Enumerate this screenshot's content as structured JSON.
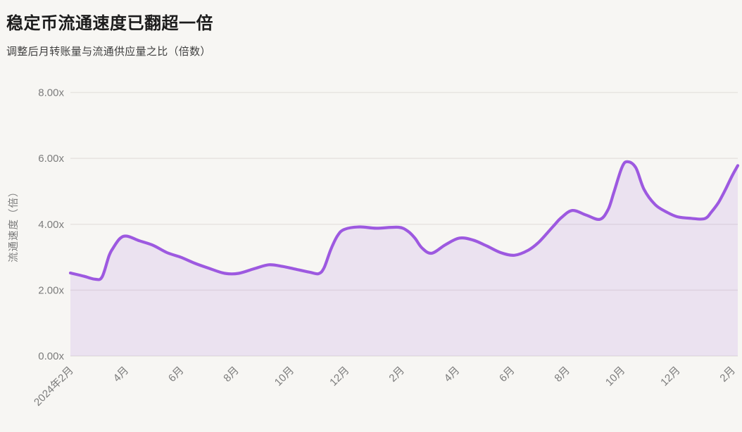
{
  "page": {
    "title": "稳定币流通速度已翻超一倍",
    "subtitle": "调整后月转账量与流通供应量之比（倍数）"
  },
  "colors": {
    "background": "#f7f6f3",
    "line": "#9d59e0",
    "area_fill": "rgba(157,89,224,0.13)",
    "grid": "#e7e4e0",
    "axis_text": "#7c7c7c",
    "title_text": "#1c1c1c",
    "subtitle_text": "#3f3f3f"
  },
  "chart_data": {
    "type": "area",
    "title": "稳定币流通速度已翻超一倍",
    "subtitle": "调整后月转账量与流通供应量之比（倍数）",
    "ylabel": "流通速度（倍）",
    "xlabel": "",
    "ylim": [
      0,
      8
    ],
    "x_domain_months": [
      0,
      24.2
    ],
    "grid": "horizontal-only",
    "legend": "none",
    "y_ticks": [
      {
        "v": 0,
        "label": "0.00x"
      },
      {
        "v": 2,
        "label": "2.00x"
      },
      {
        "v": 4,
        "label": "4.00x"
      },
      {
        "v": 6,
        "label": "6.00x"
      },
      {
        "v": 8,
        "label": "8.00x"
      }
    ],
    "x_ticks": [
      {
        "m": 0,
        "label": "2024年2月"
      },
      {
        "m": 2,
        "label": "4月"
      },
      {
        "m": 4,
        "label": "6月"
      },
      {
        "m": 6,
        "label": "8月"
      },
      {
        "m": 8,
        "label": "10月"
      },
      {
        "m": 10,
        "label": "12月"
      },
      {
        "m": 12,
        "label": "2月"
      },
      {
        "m": 14,
        "label": "4月"
      },
      {
        "m": 16,
        "label": "6月"
      },
      {
        "m": 18,
        "label": "8月"
      },
      {
        "m": 20,
        "label": "10月"
      },
      {
        "m": 22,
        "label": "12月"
      },
      {
        "m": 24,
        "label": "2月"
      }
    ],
    "series": [
      {
        "name": "稳定币流通速度",
        "unit": "x",
        "points": [
          [
            0.0,
            2.52
          ],
          [
            0.5,
            2.42
          ],
          [
            0.9,
            2.33
          ],
          [
            1.15,
            2.4
          ],
          [
            1.4,
            3.04
          ],
          [
            1.55,
            3.28
          ],
          [
            1.8,
            3.57
          ],
          [
            2.05,
            3.64
          ],
          [
            2.5,
            3.5
          ],
          [
            3.0,
            3.36
          ],
          [
            3.5,
            3.14
          ],
          [
            4.0,
            3.0
          ],
          [
            4.5,
            2.82
          ],
          [
            5.0,
            2.67
          ],
          [
            5.6,
            2.51
          ],
          [
            6.1,
            2.51
          ],
          [
            6.7,
            2.66
          ],
          [
            7.2,
            2.77
          ],
          [
            7.7,
            2.72
          ],
          [
            8.2,
            2.63
          ],
          [
            8.7,
            2.54
          ],
          [
            9.0,
            2.5
          ],
          [
            9.2,
            2.68
          ],
          [
            9.45,
            3.25
          ],
          [
            9.7,
            3.67
          ],
          [
            9.95,
            3.85
          ],
          [
            10.5,
            3.92
          ],
          [
            11.1,
            3.88
          ],
          [
            11.9,
            3.91
          ],
          [
            12.25,
            3.78
          ],
          [
            12.5,
            3.57
          ],
          [
            12.75,
            3.28
          ],
          [
            13.1,
            3.12
          ],
          [
            13.6,
            3.38
          ],
          [
            14.1,
            3.58
          ],
          [
            14.6,
            3.52
          ],
          [
            15.1,
            3.34
          ],
          [
            15.6,
            3.14
          ],
          [
            16.1,
            3.06
          ],
          [
            16.6,
            3.21
          ],
          [
            17.0,
            3.47
          ],
          [
            17.5,
            3.93
          ],
          [
            17.8,
            4.2
          ],
          [
            18.2,
            4.42
          ],
          [
            18.7,
            4.28
          ],
          [
            19.2,
            4.15
          ],
          [
            19.5,
            4.45
          ],
          [
            19.7,
            4.95
          ],
          [
            20.0,
            5.73
          ],
          [
            20.2,
            5.9
          ],
          [
            20.5,
            5.72
          ],
          [
            20.8,
            5.06
          ],
          [
            21.2,
            4.6
          ],
          [
            21.6,
            4.38
          ],
          [
            22.0,
            4.23
          ],
          [
            22.5,
            4.18
          ],
          [
            23.0,
            4.17
          ],
          [
            23.25,
            4.38
          ],
          [
            23.5,
            4.66
          ],
          [
            23.75,
            5.05
          ],
          [
            24.0,
            5.48
          ],
          [
            24.2,
            5.78
          ]
        ]
      }
    ]
  }
}
